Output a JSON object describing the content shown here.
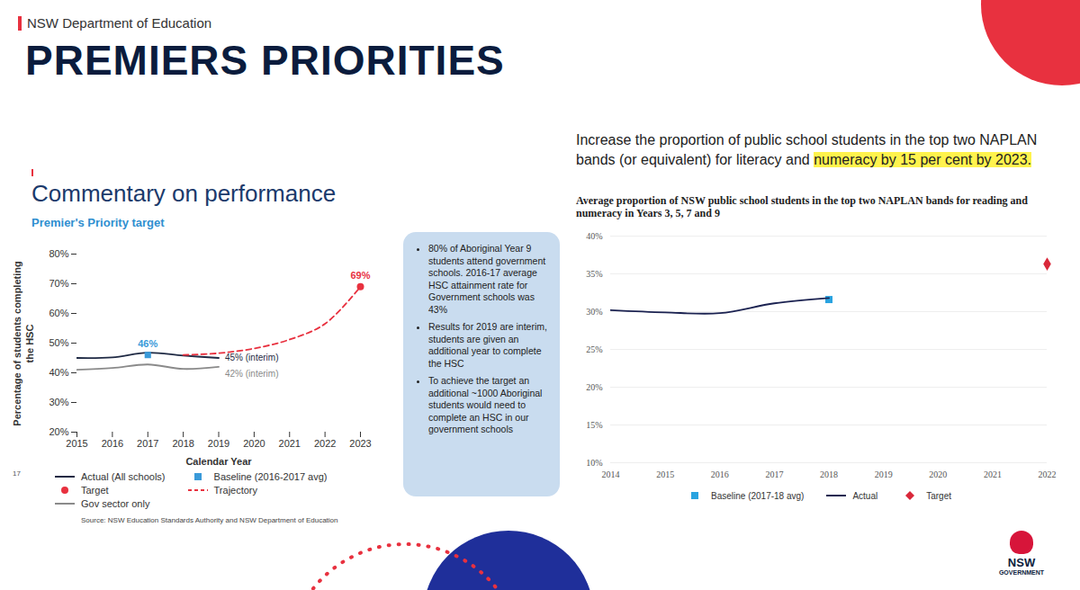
{
  "header": {
    "department": "NSW Department of Education",
    "title": "PREMIERS PRIORITIES",
    "page_number": "17"
  },
  "notes": [
    "80% of Aboriginal Year 9 students attend government schools. 2016-17 average HSC attainment rate for Government schools was 43%",
    "Results for 2019 are interim, students are given an additional year to complete the HSC",
    "To achieve the target an additional ~1000 Aboriginal students would need to complete an HSC in our government schools"
  ],
  "priority": {
    "text": "Increase the proportion of public school students in the top two NAPLAN bands (or equivalent) for literacy and",
    "highlighted": "numeracy by 15 per cent by 2023."
  },
  "logo": {
    "name": "NSW",
    "subtitle": "GOVERNMENT"
  },
  "chart_data": [
    {
      "type": "line",
      "title": "Commentary on performance",
      "subtitle": "Premier's Priority target",
      "x_label": "Calendar Year",
      "y_label": "Percentage of students completing the HSC",
      "source": "Source: NSW Education Standards Authority and NSW Department of Education",
      "x": [
        2015,
        2016,
        2017,
        2018,
        2019,
        2020,
        2021,
        2022,
        2023
      ],
      "xlim": [
        2015,
        2023
      ],
      "xticks": [
        2015,
        2016,
        2017,
        2018,
        2019,
        2020,
        2021,
        2022,
        2023
      ],
      "ylim": [
        20,
        80
      ],
      "yticks": [
        {
          "value": 20,
          "label": "20%"
        },
        {
          "value": 30,
          "label": "30%"
        },
        {
          "value": 40,
          "label": "40%"
        },
        {
          "value": 50,
          "label": "50%"
        },
        {
          "value": 60,
          "label": "60%"
        },
        {
          "value": 70,
          "label": "70%"
        },
        {
          "value": 80,
          "label": "80%"
        }
      ],
      "grid": false,
      "legend": "bottom",
      "series": [
        {
          "name": "Actual (All schools)",
          "type": "line",
          "color": "#1f2a44",
          "line_style": "solid",
          "values": [
            45,
            45.2,
            46.8,
            45.8,
            45,
            null,
            null,
            null,
            null
          ],
          "data_labels": true,
          "value_labels": [
            null,
            null,
            null,
            null,
            "45% (interim)",
            null,
            null,
            null,
            null
          ]
        },
        {
          "name": "Baseline (2016-2017 avg)",
          "type": "scatter",
          "color": "#3a9ad9",
          "marker": "square",
          "values": [
            null,
            null,
            46,
            null,
            null,
            null,
            null,
            null,
            null
          ],
          "data_labels": true,
          "value_labels": [
            null,
            null,
            "46%",
            null,
            null,
            null,
            null,
            null,
            null
          ]
        },
        {
          "name": "Target",
          "type": "scatter",
          "color": "#e8313f",
          "marker": "circle",
          "values": [
            null,
            null,
            null,
            null,
            null,
            null,
            null,
            null,
            69
          ],
          "data_labels": true,
          "value_labels": [
            null,
            null,
            null,
            null,
            null,
            null,
            null,
            null,
            "69%"
          ]
        },
        {
          "name": "Trajectory",
          "type": "line",
          "color": "#e8313f",
          "line_style": "dashed",
          "values": [
            null,
            null,
            null,
            46,
            46.6,
            48.2,
            51.2,
            56.5,
            69
          ]
        },
        {
          "name": "Gov sector only",
          "type": "line",
          "color": "#8a8a8a",
          "line_style": "solid",
          "values": [
            41,
            41.6,
            42.8,
            41.3,
            42,
            null,
            null,
            null,
            null
          ],
          "data_labels": true,
          "value_labels": [
            null,
            null,
            null,
            null,
            "42% (interim)",
            null,
            null,
            null,
            null
          ]
        }
      ]
    },
    {
      "type": "line",
      "title": "Average proportion of NSW public school students in the top two NAPLAN bands for reading and numeracy in Years 3, 5, 7 and 9",
      "x": [
        2014,
        2015,
        2016,
        2017,
        2018,
        2019,
        2020,
        2021,
        2022
      ],
      "xlim": [
        2014,
        2022
      ],
      "xticks": [
        2014,
        2015,
        2016,
        2017,
        2018,
        2019,
        2020,
        2021,
        2022
      ],
      "ylim": [
        10,
        40
      ],
      "yticks": [
        {
          "value": 10,
          "label": "10%"
        },
        {
          "value": 15,
          "label": "15%"
        },
        {
          "value": 20,
          "label": "20%"
        },
        {
          "value": 25,
          "label": "25%"
        },
        {
          "value": 30,
          "label": "30%"
        },
        {
          "value": 35,
          "label": "35%"
        },
        {
          "value": 40,
          "label": "40%"
        }
      ],
      "grid": true,
      "legend": "bottom",
      "series": [
        {
          "name": "Baseline (2017-18 avg)",
          "type": "scatter",
          "color": "#29a3e0",
          "marker": "square",
          "values": [
            null,
            null,
            null,
            null,
            31.6,
            null,
            null,
            null,
            null
          ]
        },
        {
          "name": "Actual",
          "type": "line",
          "color": "#1b2251",
          "line_style": "solid",
          "values": [
            30.2,
            29.9,
            29.8,
            31.1,
            31.8,
            null,
            null,
            null,
            null
          ]
        },
        {
          "name": "Target",
          "type": "scatter",
          "color": "#d9283a",
          "marker": "diamond",
          "values": [
            null,
            null,
            null,
            null,
            null,
            null,
            null,
            null,
            36.3
          ]
        }
      ]
    }
  ]
}
